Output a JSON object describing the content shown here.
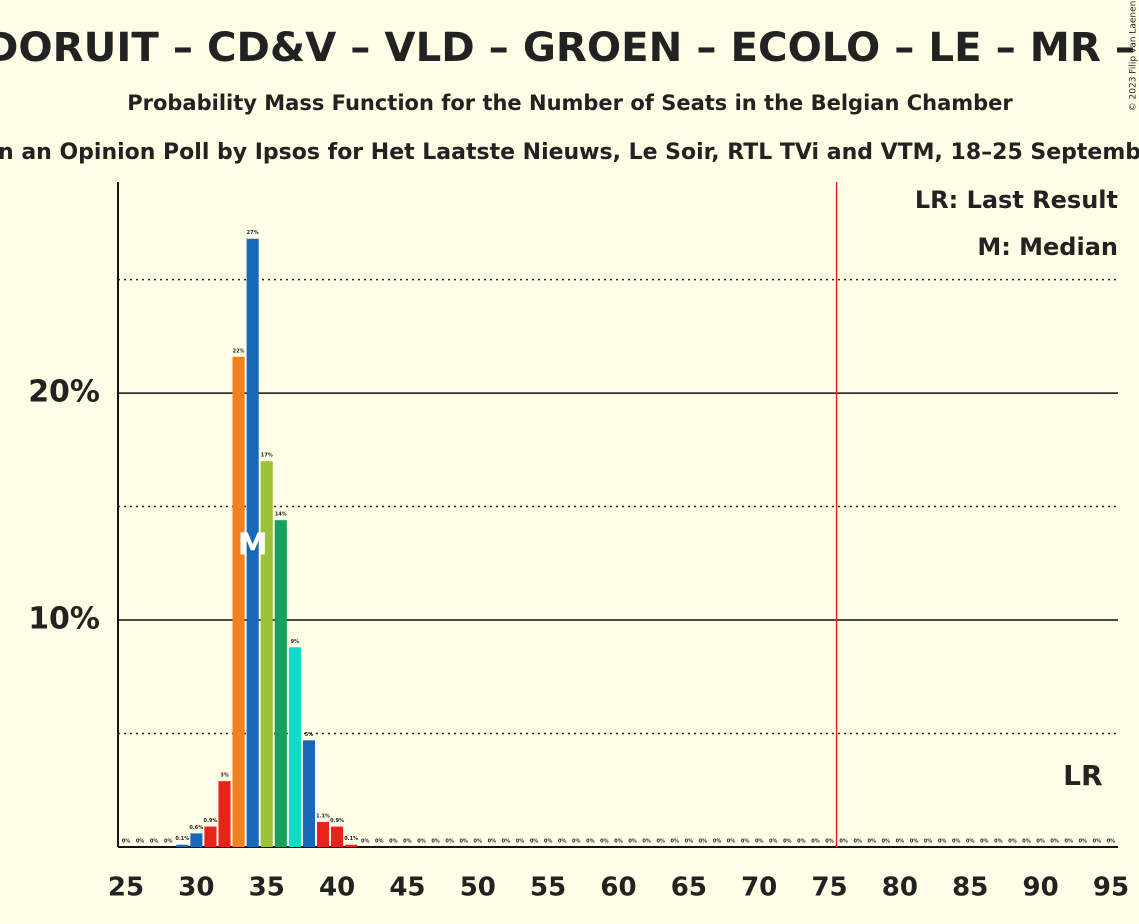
{
  "chart_data": {
    "type": "bar",
    "title": "DORUIT – CD&V – VLD – GROEN – ECOLO – LE – MR –",
    "subtitle": "Probability Mass Function for the Number of Seats in the Belgian Chamber",
    "subtitle2": "n an Opinion Poll by Ipsos for Het Laatste Nieuws, Le Soir, RTL TVi and VTM, 18–25 Septemb",
    "copyright": "© 2023 Filip van Laenen",
    "legend": [
      "LR: Last Result",
      "M: Median"
    ],
    "x": [
      25,
      26,
      27,
      28,
      29,
      30,
      31,
      32,
      33,
      34,
      35,
      36,
      37,
      38,
      39,
      40,
      41,
      42,
      43,
      44,
      45,
      46,
      47,
      48,
      49,
      50,
      51,
      52,
      53,
      54,
      55,
      56,
      57,
      58,
      59,
      60,
      61,
      62,
      63,
      64,
      65,
      66,
      67,
      68,
      69,
      70,
      71,
      72,
      73,
      74,
      75,
      76,
      77,
      78,
      79,
      80,
      81,
      82,
      83,
      84,
      85,
      86,
      87,
      88,
      89,
      90,
      91,
      92,
      93,
      94,
      95
    ],
    "values": [
      0,
      0,
      0,
      0,
      0.1,
      0.6,
      0.9,
      2.9,
      21.6,
      26.8,
      17.0,
      14.4,
      8.8,
      4.7,
      1.1,
      0.9,
      0.1,
      0,
      0,
      0,
      0,
      0,
      0,
      0,
      0,
      0,
      0,
      0,
      0,
      0,
      0,
      0,
      0,
      0,
      0,
      0,
      0,
      0,
      0,
      0,
      0,
      0,
      0,
      0,
      0,
      0,
      0,
      0,
      0,
      0,
      0,
      0,
      0,
      0,
      0,
      0,
      0,
      0,
      0,
      0,
      0,
      0,
      0,
      0,
      0,
      0,
      0,
      0,
      0,
      0,
      0
    ],
    "value_labels": [
      "0%",
      "0%",
      "0%",
      "0%",
      "0.1%",
      "0.6%",
      "0.9%",
      "3%",
      "22%",
      "27%",
      "17%",
      "14%",
      "9%",
      "5%",
      "1.1%",
      "0.9%",
      "0.1%",
      "0%",
      "0%",
      "0%",
      "0%",
      "0%",
      "0%",
      "0%",
      "0%",
      "0%",
      "0%",
      "0%",
      "0%",
      "0%",
      "0%",
      "0%",
      "0%",
      "0%",
      "0%",
      "0%",
      "0%",
      "0%",
      "0%",
      "0%",
      "0%",
      "0%",
      "0%",
      "0%",
      "0%",
      "0%",
      "0%",
      "0%",
      "0%",
      "0%",
      "0%",
      "0%",
      "0%",
      "0%",
      "0%",
      "0%",
      "0%",
      "0%",
      "0%",
      "0%",
      "0%",
      "0%",
      "0%",
      "0%",
      "0%",
      "0%",
      "0%",
      "0%",
      "0%",
      "0%",
      "0%"
    ],
    "colors": [
      "#1768b8",
      "#1768b8",
      "#1768b8",
      "#1768b8",
      "#1768b8",
      "#1768b8",
      "#e8231b",
      "#e8231b",
      "#f08020",
      "#1768b8",
      "#9dc03a",
      "#16a05a",
      "#14d8c8",
      "#1768b8",
      "#e8231b",
      "#e8231b",
      "#e8231b",
      "#1768b8",
      "#1768b8",
      "#1768b8",
      "#1768b8",
      "#1768b8",
      "#1768b8",
      "#1768b8",
      "#1768b8",
      "#1768b8",
      "#1768b8",
      "#1768b8",
      "#1768b8",
      "#1768b8",
      "#1768b8",
      "#1768b8",
      "#1768b8",
      "#1768b8",
      "#1768b8",
      "#1768b8",
      "#1768b8",
      "#1768b8",
      "#1768b8",
      "#1768b8",
      "#1768b8",
      "#1768b8",
      "#1768b8",
      "#1768b8",
      "#1768b8",
      "#1768b8",
      "#1768b8",
      "#1768b8",
      "#1768b8",
      "#1768b8",
      "#1768b8",
      "#1768b8",
      "#1768b8",
      "#1768b8",
      "#1768b8",
      "#1768b8",
      "#1768b8",
      "#1768b8",
      "#1768b8",
      "#1768b8",
      "#1768b8",
      "#1768b8",
      "#1768b8",
      "#1768b8",
      "#1768b8",
      "#1768b8",
      "#1768b8",
      "#1768b8",
      "#1768b8",
      "#1768b8",
      "#1768b8"
    ],
    "xlim": [
      24.43,
      95.5
    ],
    "xticks": [
      25,
      30,
      35,
      40,
      45,
      50,
      55,
      60,
      65,
      70,
      75,
      80,
      85,
      90,
      95
    ],
    "ylim": [
      0,
      29.3
    ],
    "yticks": [
      {
        "value": 10,
        "label": "10%"
      },
      {
        "value": 20,
        "label": "20%"
      }
    ],
    "minor_yticks": [
      5,
      15,
      25
    ],
    "majority": 76,
    "majority_color": "#e8231b",
    "median": 34,
    "median_label": "M",
    "last_result": 93,
    "last_result_label": "LR"
  }
}
